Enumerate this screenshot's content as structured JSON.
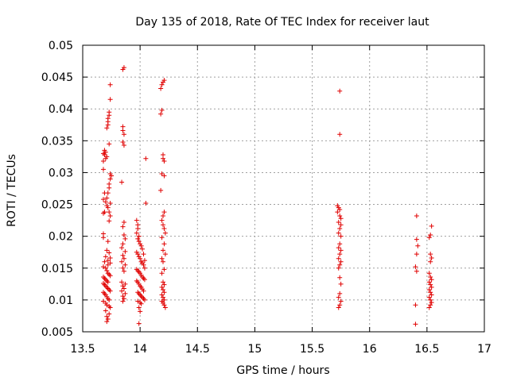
{
  "chart_data": {
    "type": "scatter",
    "title": "Day 135 of 2018, Rate Of TEC Index for receiver laut",
    "xlabel": "GPS time / hours",
    "ylabel": "ROTI / TECUs",
    "xlim": [
      13.5,
      17
    ],
    "ylim": [
      0.005,
      0.05
    ],
    "xticks": [
      13.5,
      14,
      14.5,
      15,
      15.5,
      16,
      16.5,
      17
    ],
    "xtick_labels": [
      "13.5",
      "14",
      "14.5",
      "15",
      "15.5",
      "16",
      "16.5",
      "17"
    ],
    "yticks": [
      0.005,
      0.01,
      0.015,
      0.02,
      0.025,
      0.03,
      0.035,
      0.04,
      0.045,
      0.05
    ],
    "ytick_labels": [
      "0.005",
      "0.01",
      "0.015",
      "0.02",
      "0.025",
      "0.03",
      "0.035",
      "0.04",
      "0.045",
      "0.05"
    ],
    "grid": true,
    "marker": "+",
    "color": "#e00000",
    "series": [
      {
        "name": "ROTI",
        "points": [
          [
            13.68,
            0.0305
          ],
          [
            13.68,
            0.0318
          ],
          [
            13.68,
            0.033
          ],
          [
            13.69,
            0.0335
          ],
          [
            13.69,
            0.0328
          ],
          [
            13.7,
            0.0322
          ],
          [
            13.7,
            0.0332
          ],
          [
            13.71,
            0.0325
          ],
          [
            13.71,
            0.037
          ],
          [
            13.72,
            0.0375
          ],
          [
            13.72,
            0.038
          ],
          [
            13.72,
            0.0385
          ],
          [
            13.73,
            0.039
          ],
          [
            13.73,
            0.0395
          ],
          [
            13.74,
            0.0415
          ],
          [
            13.74,
            0.0438
          ],
          [
            13.73,
            0.0345
          ],
          [
            13.74,
            0.0298
          ],
          [
            13.74,
            0.029
          ],
          [
            13.73,
            0.0282
          ],
          [
            13.73,
            0.0276
          ],
          [
            13.72,
            0.0268
          ],
          [
            13.71,
            0.026
          ],
          [
            13.69,
            0.0268
          ],
          [
            13.68,
            0.0258
          ],
          [
            13.7,
            0.0254
          ],
          [
            13.71,
            0.0248
          ],
          [
            13.72,
            0.0245
          ],
          [
            13.73,
            0.0238
          ],
          [
            13.69,
            0.0238
          ],
          [
            13.68,
            0.0236
          ],
          [
            13.74,
            0.0232
          ],
          [
            13.73,
            0.0224
          ],
          [
            13.75,
            0.0295
          ],
          [
            13.74,
            0.0252
          ],
          [
            13.68,
            0.0204
          ],
          [
            13.68,
            0.0198
          ],
          [
            13.72,
            0.0192
          ],
          [
            13.71,
            0.0178
          ],
          [
            13.73,
            0.0174
          ],
          [
            13.7,
            0.0168
          ],
          [
            13.69,
            0.016
          ],
          [
            13.72,
            0.0162
          ],
          [
            13.74,
            0.0158
          ],
          [
            13.68,
            0.0152
          ],
          [
            13.7,
            0.015
          ],
          [
            13.71,
            0.0146
          ],
          [
            13.72,
            0.0142
          ],
          [
            13.73,
            0.014
          ],
          [
            13.74,
            0.0138
          ],
          [
            13.68,
            0.0136
          ],
          [
            13.69,
            0.0134
          ],
          [
            13.7,
            0.0132
          ],
          [
            13.71,
            0.013
          ],
          [
            13.72,
            0.0128
          ],
          [
            13.68,
            0.0126
          ],
          [
            13.69,
            0.0124
          ],
          [
            13.7,
            0.0122
          ],
          [
            13.71,
            0.012
          ],
          [
            13.72,
            0.0118
          ],
          [
            13.73,
            0.0116
          ],
          [
            13.74,
            0.0114
          ],
          [
            13.68,
            0.0112
          ],
          [
            13.69,
            0.011
          ],
          [
            13.7,
            0.0108
          ],
          [
            13.71,
            0.0105
          ],
          [
            13.72,
            0.0102
          ],
          [
            13.73,
            0.01
          ],
          [
            13.68,
            0.0098
          ],
          [
            13.7,
            0.0095
          ],
          [
            13.71,
            0.0092
          ],
          [
            13.73,
            0.009
          ],
          [
            13.74,
            0.0088
          ],
          [
            13.71,
            0.0074
          ],
          [
            13.72,
            0.007
          ],
          [
            13.71,
            0.0066
          ],
          [
            13.73,
            0.0078
          ],
          [
            13.7,
            0.0083
          ],
          [
            13.72,
            0.0155
          ],
          [
            13.74,
            0.0166
          ],
          [
            13.85,
            0.0462
          ],
          [
            13.86,
            0.0465
          ],
          [
            13.85,
            0.0372
          ],
          [
            13.85,
            0.0366
          ],
          [
            13.86,
            0.036
          ],
          [
            13.85,
            0.0348
          ],
          [
            13.86,
            0.0343
          ],
          [
            13.84,
            0.0285
          ],
          [
            13.86,
            0.0222
          ],
          [
            13.85,
            0.0215
          ],
          [
            13.86,
            0.0202
          ],
          [
            13.85,
            0.0188
          ],
          [
            13.84,
            0.0182
          ],
          [
            13.87,
            0.0176
          ],
          [
            13.85,
            0.017
          ],
          [
            13.86,
            0.0165
          ],
          [
            13.84,
            0.016
          ],
          [
            13.87,
            0.0155
          ],
          [
            13.85,
            0.015
          ],
          [
            13.86,
            0.0145
          ],
          [
            13.84,
            0.0128
          ],
          [
            13.87,
            0.0125
          ],
          [
            13.85,
            0.0122
          ],
          [
            13.86,
            0.0118
          ],
          [
            13.84,
            0.0114
          ],
          [
            13.87,
            0.011
          ],
          [
            13.85,
            0.0106
          ],
          [
            13.86,
            0.0102
          ],
          [
            13.85,
            0.0098
          ],
          [
            13.87,
            0.0196
          ],
          [
            13.97,
            0.0225
          ],
          [
            13.98,
            0.0218
          ],
          [
            13.98,
            0.0212
          ],
          [
            13.97,
            0.0205
          ],
          [
            13.99,
            0.02
          ],
          [
            13.98,
            0.0196
          ],
          [
            13.99,
            0.0192
          ],
          [
            14.0,
            0.0188
          ],
          [
            14.01,
            0.0185
          ],
          [
            14.02,
            0.018
          ],
          [
            13.97,
            0.0175
          ],
          [
            13.98,
            0.0172
          ],
          [
            13.99,
            0.0168
          ],
          [
            14.0,
            0.0165
          ],
          [
            14.01,
            0.016
          ],
          [
            14.02,
            0.0158
          ],
          [
            14.03,
            0.0155
          ],
          [
            14.04,
            0.015
          ],
          [
            13.97,
            0.0148
          ],
          [
            13.98,
            0.0146
          ],
          [
            13.99,
            0.0144
          ],
          [
            14.0,
            0.0142
          ],
          [
            14.01,
            0.0139
          ],
          [
            14.02,
            0.0136
          ],
          [
            14.03,
            0.0134
          ],
          [
            14.04,
            0.0132
          ],
          [
            13.97,
            0.013
          ],
          [
            13.98,
            0.0128
          ],
          [
            13.99,
            0.0125
          ],
          [
            14.0,
            0.0122
          ],
          [
            14.01,
            0.012
          ],
          [
            14.02,
            0.0117
          ],
          [
            14.03,
            0.0114
          ],
          [
            13.98,
            0.0112
          ],
          [
            13.99,
            0.011
          ],
          [
            14.0,
            0.0108
          ],
          [
            14.01,
            0.0106
          ],
          [
            14.02,
            0.0104
          ],
          [
            14.03,
            0.0102
          ],
          [
            14.04,
            0.01
          ],
          [
            13.98,
            0.0098
          ],
          [
            14.0,
            0.0096
          ],
          [
            14.01,
            0.0094
          ],
          [
            13.99,
            0.0088
          ],
          [
            14.0,
            0.0082
          ],
          [
            13.99,
            0.0063
          ],
          [
            14.05,
            0.0322
          ],
          [
            14.05,
            0.0252
          ],
          [
            14.03,
            0.0172
          ],
          [
            14.04,
            0.0162
          ],
          [
            14.18,
            0.0392
          ],
          [
            14.19,
            0.0398
          ],
          [
            14.18,
            0.0432
          ],
          [
            14.19,
            0.0438
          ],
          [
            14.2,
            0.0442
          ],
          [
            14.21,
            0.0445
          ],
          [
            14.2,
            0.0328
          ],
          [
            14.2,
            0.0322
          ],
          [
            14.21,
            0.0318
          ],
          [
            14.19,
            0.0298
          ],
          [
            14.21,
            0.0295
          ],
          [
            14.18,
            0.0272
          ],
          [
            14.19,
            0.0225
          ],
          [
            14.2,
            0.0232
          ],
          [
            14.21,
            0.0238
          ],
          [
            14.2,
            0.0218
          ],
          [
            14.21,
            0.0212
          ],
          [
            14.22,
            0.0205
          ],
          [
            14.19,
            0.0198
          ],
          [
            14.21,
            0.0188
          ],
          [
            14.2,
            0.0178
          ],
          [
            14.22,
            0.0172
          ],
          [
            14.19,
            0.0165
          ],
          [
            14.2,
            0.016
          ],
          [
            14.21,
            0.0148
          ],
          [
            14.19,
            0.0142
          ],
          [
            14.2,
            0.0128
          ],
          [
            14.21,
            0.0124
          ],
          [
            14.19,
            0.012
          ],
          [
            14.2,
            0.0116
          ],
          [
            14.21,
            0.0112
          ],
          [
            14.19,
            0.0108
          ],
          [
            14.2,
            0.0104
          ],
          [
            14.21,
            0.01
          ],
          [
            14.19,
            0.0098
          ],
          [
            14.2,
            0.0095
          ],
          [
            14.21,
            0.0092
          ],
          [
            14.22,
            0.0088
          ],
          [
            15.74,
            0.0428
          ],
          [
            15.74,
            0.036
          ],
          [
            15.72,
            0.0248
          ],
          [
            15.73,
            0.0245
          ],
          [
            15.74,
            0.0242
          ],
          [
            15.72,
            0.0238
          ],
          [
            15.74,
            0.0232
          ],
          [
            15.75,
            0.0228
          ],
          [
            15.73,
            0.0222
          ],
          [
            15.75,
            0.0218
          ],
          [
            15.74,
            0.0212
          ],
          [
            15.73,
            0.0205
          ],
          [
            15.75,
            0.02
          ],
          [
            15.74,
            0.0188
          ],
          [
            15.73,
            0.0182
          ],
          [
            15.75,
            0.0178
          ],
          [
            15.74,
            0.0172
          ],
          [
            15.73,
            0.0165
          ],
          [
            15.75,
            0.016
          ],
          [
            15.74,
            0.0155
          ],
          [
            15.73,
            0.015
          ],
          [
            15.74,
            0.0135
          ],
          [
            15.75,
            0.0125
          ],
          [
            15.74,
            0.011
          ],
          [
            15.73,
            0.0104
          ],
          [
            15.75,
            0.0098
          ],
          [
            15.74,
            0.0092
          ],
          [
            15.73,
            0.0088
          ],
          [
            16.41,
            0.0232
          ],
          [
            16.41,
            0.0195
          ],
          [
            16.42,
            0.0185
          ],
          [
            16.41,
            0.0172
          ],
          [
            16.4,
            0.0152
          ],
          [
            16.41,
            0.0145
          ],
          [
            16.4,
            0.0092
          ],
          [
            16.4,
            0.0062
          ],
          [
            16.54,
            0.0216
          ],
          [
            16.53,
            0.0202
          ],
          [
            16.52,
            0.0198
          ],
          [
            16.53,
            0.0172
          ],
          [
            16.54,
            0.0166
          ],
          [
            16.53,
            0.016
          ],
          [
            16.52,
            0.0142
          ],
          [
            16.53,
            0.0136
          ],
          [
            16.54,
            0.0132
          ],
          [
            16.52,
            0.0128
          ],
          [
            16.53,
            0.0124
          ],
          [
            16.54,
            0.012
          ],
          [
            16.52,
            0.0116
          ],
          [
            16.53,
            0.0112
          ],
          [
            16.54,
            0.0108
          ],
          [
            16.52,
            0.0104
          ],
          [
            16.53,
            0.01
          ],
          [
            16.54,
            0.0096
          ],
          [
            16.53,
            0.0092
          ],
          [
            16.52,
            0.0088
          ]
        ]
      }
    ]
  }
}
